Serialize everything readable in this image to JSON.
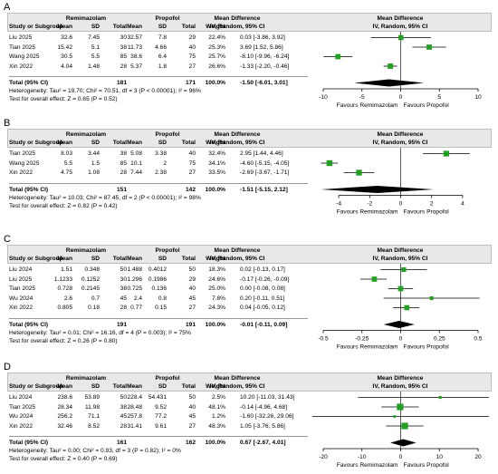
{
  "columns": {
    "study": "Study or Subgroup",
    "group1": "Remimazolam",
    "group2": "Propofol",
    "mean": "Mean",
    "sd": "SD",
    "total": "Total",
    "weight": "Weight",
    "md_title": "Mean Difference",
    "md_method": "IV, Random, 95% CI"
  },
  "panels": [
    {
      "label": "A",
      "studies": [
        {
          "name": "Liu 2025",
          "m1": "32.6",
          "sd1": "7.45",
          "n1": "30",
          "m2": "32.57",
          "sd2": "7.8",
          "n2": "29",
          "weight": "22.4%",
          "ci": "0.03 [-3.86, 3.92]"
        },
        {
          "name": "Tian 2025",
          "m1": "15.42",
          "sd1": "5.1",
          "n1": "38",
          "m2": "11.73",
          "sd2": "4.66",
          "n2": "40",
          "weight": "25.3%",
          "ci": "3.69 [1.52, 5.86]"
        },
        {
          "name": "Wang 2025",
          "m1": "30.5",
          "sd1": "5.5",
          "n1": "85",
          "m2": "38.6",
          "sd2": "6.4",
          "n2": "75",
          "weight": "25.7%",
          "ci": "-8.10 [-9.96, -6.24]"
        },
        {
          "name": "Xin 2022",
          "m1": "4.04",
          "sd1": "1.48",
          "n1": "28",
          "m2": "5.37",
          "sd2": "1.8",
          "n2": "27",
          "weight": "26.6%",
          "ci": "-1.33 [-2.20, -0.46]"
        }
      ],
      "total": {
        "label": "Total (95% CI)",
        "n1": "181",
        "n2": "171",
        "weight": "100.0%",
        "ci": "-1.50 [-6.01, 3.01]"
      },
      "heterogeneity": "Heterogeneity: Tau² = 19.70; Chi² = 70.51, df = 3 (P < 0.00001); I² = 96%",
      "overall": "Test for overall effect: Z = 0.65 (P = 0.52)",
      "axis_ticks": [
        "-10",
        "-5",
        "0",
        "5",
        "10"
      ],
      "favours_left": "Favours Remimazolam",
      "favours_right": "Favours Propofol"
    },
    {
      "label": "B",
      "studies": [
        {
          "name": "Tian 2025",
          "m1": "8.03",
          "sd1": "3.44",
          "n1": "38",
          "m2": "5.08",
          "sd2": "3.38",
          "n2": "40",
          "weight": "32.4%",
          "ci": "2.95 [1.44, 4.46]"
        },
        {
          "name": "Wang 2025",
          "m1": "5.5",
          "sd1": "1.5",
          "n1": "85",
          "m2": "10.1",
          "sd2": "2",
          "n2": "75",
          "weight": "34.1%",
          "ci": "-4.60 [-5.15, -4.05]"
        },
        {
          "name": "Xin 2022",
          "m1": "4.75",
          "sd1": "1.08",
          "n1": "28",
          "m2": "7.44",
          "sd2": "2.38",
          "n2": "27",
          "weight": "33.5%",
          "ci": "-2.69 [-3.67, -1.71]"
        }
      ],
      "total": {
        "label": "Total (95% CI)",
        "n1": "151",
        "n2": "142",
        "weight": "100.0%",
        "ci": "-1.51 [-5.15, 2.12]"
      },
      "heterogeneity": "Heterogeneity: Tau² = 10.03; Chi² = 87.45, df = 2 (P < 0.00001); I² = 98%",
      "overall": "Test for overall effect: Z = 0.82 (P = 0.42)",
      "axis_ticks": [
        "-4",
        "-2",
        "0",
        "2",
        "4"
      ],
      "favours_left": "Favours Remimazolam",
      "favours_right": "Favours Propofol"
    },
    {
      "label": "C",
      "studies": [
        {
          "name": "Liu 2024",
          "m1": "1.51",
          "sd1": "0.348",
          "n1": "50",
          "m2": "1.488",
          "sd2": "0.4012",
          "n2": "50",
          "weight": "18.3%",
          "ci": "0.02 [-0.13, 0.17]"
        },
        {
          "name": "Liu 2025",
          "m1": "1.1233",
          "sd1": "0.1252",
          "n1": "30",
          "m2": "1.296",
          "sd2": "0.1986",
          "n2": "29",
          "weight": "24.6%",
          "ci": "-0.17 [-0.26, -0.09]"
        },
        {
          "name": "Tian 2025",
          "m1": "0.728",
          "sd1": "0.2145",
          "n1": "38",
          "m2": "0.725",
          "sd2": "0.136",
          "n2": "40",
          "weight": "25.0%",
          "ci": "0.00 [-0.08, 0.08]"
        },
        {
          "name": "Wu 2024",
          "m1": "2.6",
          "sd1": "0.7",
          "n1": "45",
          "m2": "2.4",
          "sd2": "0.8",
          "n2": "45",
          "weight": "7.8%",
          "ci": "0.20 [-0.11, 0.51]"
        },
        {
          "name": "Xin 2022",
          "m1": "0.805",
          "sd1": "0.18",
          "n1": "28",
          "m2": "0.77",
          "sd2": "0.15",
          "n2": "27",
          "weight": "24.3%",
          "ci": "0.04 [-0.05, 0.12]"
        }
      ],
      "total": {
        "label": "Total (95% CI)",
        "n1": "191",
        "n2": "191",
        "weight": "100.0%",
        "ci": "-0.01 [-0.11, 0.09]"
      },
      "heterogeneity": "Heterogeneity: Tau² = 0.01; Chi² = 16.16, df = 4 (P = 0.003); I² = 75%",
      "overall": "Test for overall effect: Z = 0.26 (P = 0.80)",
      "axis_ticks": [
        "-0.5",
        "-0.25",
        "0",
        "0.25",
        "0.5"
      ],
      "favours_left": "Favours Remimazolam",
      "favours_right": "Favours Propofol"
    },
    {
      "label": "D",
      "studies": [
        {
          "name": "Liu 2024",
          "m1": "238.6",
          "sd1": "53.89",
          "n1": "50",
          "m2": "228.4",
          "sd2": "54.431",
          "n2": "50",
          "weight": "2.5%",
          "ci": "10.20 [-11.03, 31.43]"
        },
        {
          "name": "Tian 2025",
          "m1": "28.34",
          "sd1": "11.98",
          "n1": "38",
          "m2": "28.48",
          "sd2": "9.52",
          "n2": "40",
          "weight": "48.1%",
          "ci": "-0.14 [-4.96, 4.68]"
        },
        {
          "name": "Wu 2024",
          "m1": "256.2",
          "sd1": "71.1",
          "n1": "45",
          "m2": "257.8",
          "sd2": "77.2",
          "n2": "45",
          "weight": "1.2%",
          "ci": "-1.60 [-32.26, 29.06]"
        },
        {
          "name": "Xin 2022",
          "m1": "32.46",
          "sd1": "8.52",
          "n1": "28",
          "m2": "31.41",
          "sd2": "9.61",
          "n2": "27",
          "weight": "48.3%",
          "ci": "1.05 [-3.76, 5.86]"
        }
      ],
      "total": {
        "label": "Total (95% CI)",
        "n1": "161",
        "n2": "162",
        "weight": "100.0%",
        "ci": "0.67 [-2.67, 4.01]"
      },
      "heterogeneity": "Heterogeneity: Tau² = 0.00; Chi² = 0.93, df = 3 (P = 0.82); I² = 0%",
      "overall": "Test for overall effect: Z = 0.40 (P = 0.69)",
      "axis_ticks": [
        "-20",
        "-10",
        "0",
        "10",
        "20"
      ],
      "favours_left": "Favours Remimazolam",
      "favours_right": "Favours Propofol"
    }
  ],
  "chart_data": [
    {
      "type": "scatter",
      "subtype": "forest-plot",
      "panel": "A",
      "xlim": [
        -10,
        10
      ],
      "x_ticks": [
        -10,
        -5,
        0,
        5,
        10
      ],
      "points": [
        {
          "study": "Liu 2025",
          "md": 0.03,
          "lo": -3.86,
          "hi": 3.92,
          "weight": 22.4
        },
        {
          "study": "Tian 2025",
          "md": 3.69,
          "lo": 1.52,
          "hi": 5.86,
          "weight": 25.3
        },
        {
          "study": "Wang 2025",
          "md": -8.1,
          "lo": -9.96,
          "hi": -6.24,
          "weight": 25.7
        },
        {
          "study": "Xin 2022",
          "md": -1.33,
          "lo": -2.2,
          "hi": -0.46,
          "weight": 26.6
        }
      ],
      "pooled": {
        "md": -1.5,
        "lo": -6.01,
        "hi": 3.01
      }
    },
    {
      "type": "scatter",
      "subtype": "forest-plot",
      "panel": "B",
      "xlim": [
        -5,
        5
      ],
      "x_ticks": [
        -4,
        -2,
        0,
        2,
        4
      ],
      "points": [
        {
          "study": "Tian 2025",
          "md": 2.95,
          "lo": 1.44,
          "hi": 4.46,
          "weight": 32.4
        },
        {
          "study": "Wang 2025",
          "md": -4.6,
          "lo": -5.15,
          "hi": -4.05,
          "weight": 34.1
        },
        {
          "study": "Xin 2022",
          "md": -2.69,
          "lo": -3.67,
          "hi": -1.71,
          "weight": 33.5
        }
      ],
      "pooled": {
        "md": -1.51,
        "lo": -5.15,
        "hi": 2.12
      }
    },
    {
      "type": "scatter",
      "subtype": "forest-plot",
      "panel": "C",
      "xlim": [
        -0.5,
        0.5
      ],
      "x_ticks": [
        -0.5,
        -0.25,
        0,
        0.25,
        0.5
      ],
      "points": [
        {
          "study": "Liu 2024",
          "md": 0.02,
          "lo": -0.13,
          "hi": 0.17,
          "weight": 18.3
        },
        {
          "study": "Liu 2025",
          "md": -0.17,
          "lo": -0.26,
          "hi": -0.09,
          "weight": 24.6
        },
        {
          "study": "Tian 2025",
          "md": 0.0,
          "lo": -0.08,
          "hi": 0.08,
          "weight": 25.0
        },
        {
          "study": "Wu 2024",
          "md": 0.2,
          "lo": -0.11,
          "hi": 0.51,
          "weight": 7.8
        },
        {
          "study": "Xin 2022",
          "md": 0.04,
          "lo": -0.05,
          "hi": 0.12,
          "weight": 24.3
        }
      ],
      "pooled": {
        "md": -0.01,
        "lo": -0.11,
        "hi": 0.09
      }
    },
    {
      "type": "scatter",
      "subtype": "forest-plot",
      "panel": "D",
      "xlim": [
        -20,
        20
      ],
      "x_ticks": [
        -20,
        -10,
        0,
        10,
        20
      ],
      "points": [
        {
          "study": "Liu 2024",
          "md": 10.2,
          "lo": -11.03,
          "hi": 31.43,
          "weight": 2.5
        },
        {
          "study": "Tian 2025",
          "md": -0.14,
          "lo": -4.96,
          "hi": 4.68,
          "weight": 48.1
        },
        {
          "study": "Wu 2024",
          "md": -1.6,
          "lo": -32.26,
          "hi": 29.06,
          "weight": 1.2
        },
        {
          "study": "Xin 2022",
          "md": 1.05,
          "lo": -3.76,
          "hi": 5.86,
          "weight": 48.3
        }
      ],
      "pooled": {
        "md": 0.67,
        "lo": -2.67,
        "hi": 4.01
      }
    }
  ],
  "colors": {
    "marker": "#22a022",
    "diamond": "#000000",
    "header_bg": "#e8e8e8"
  }
}
